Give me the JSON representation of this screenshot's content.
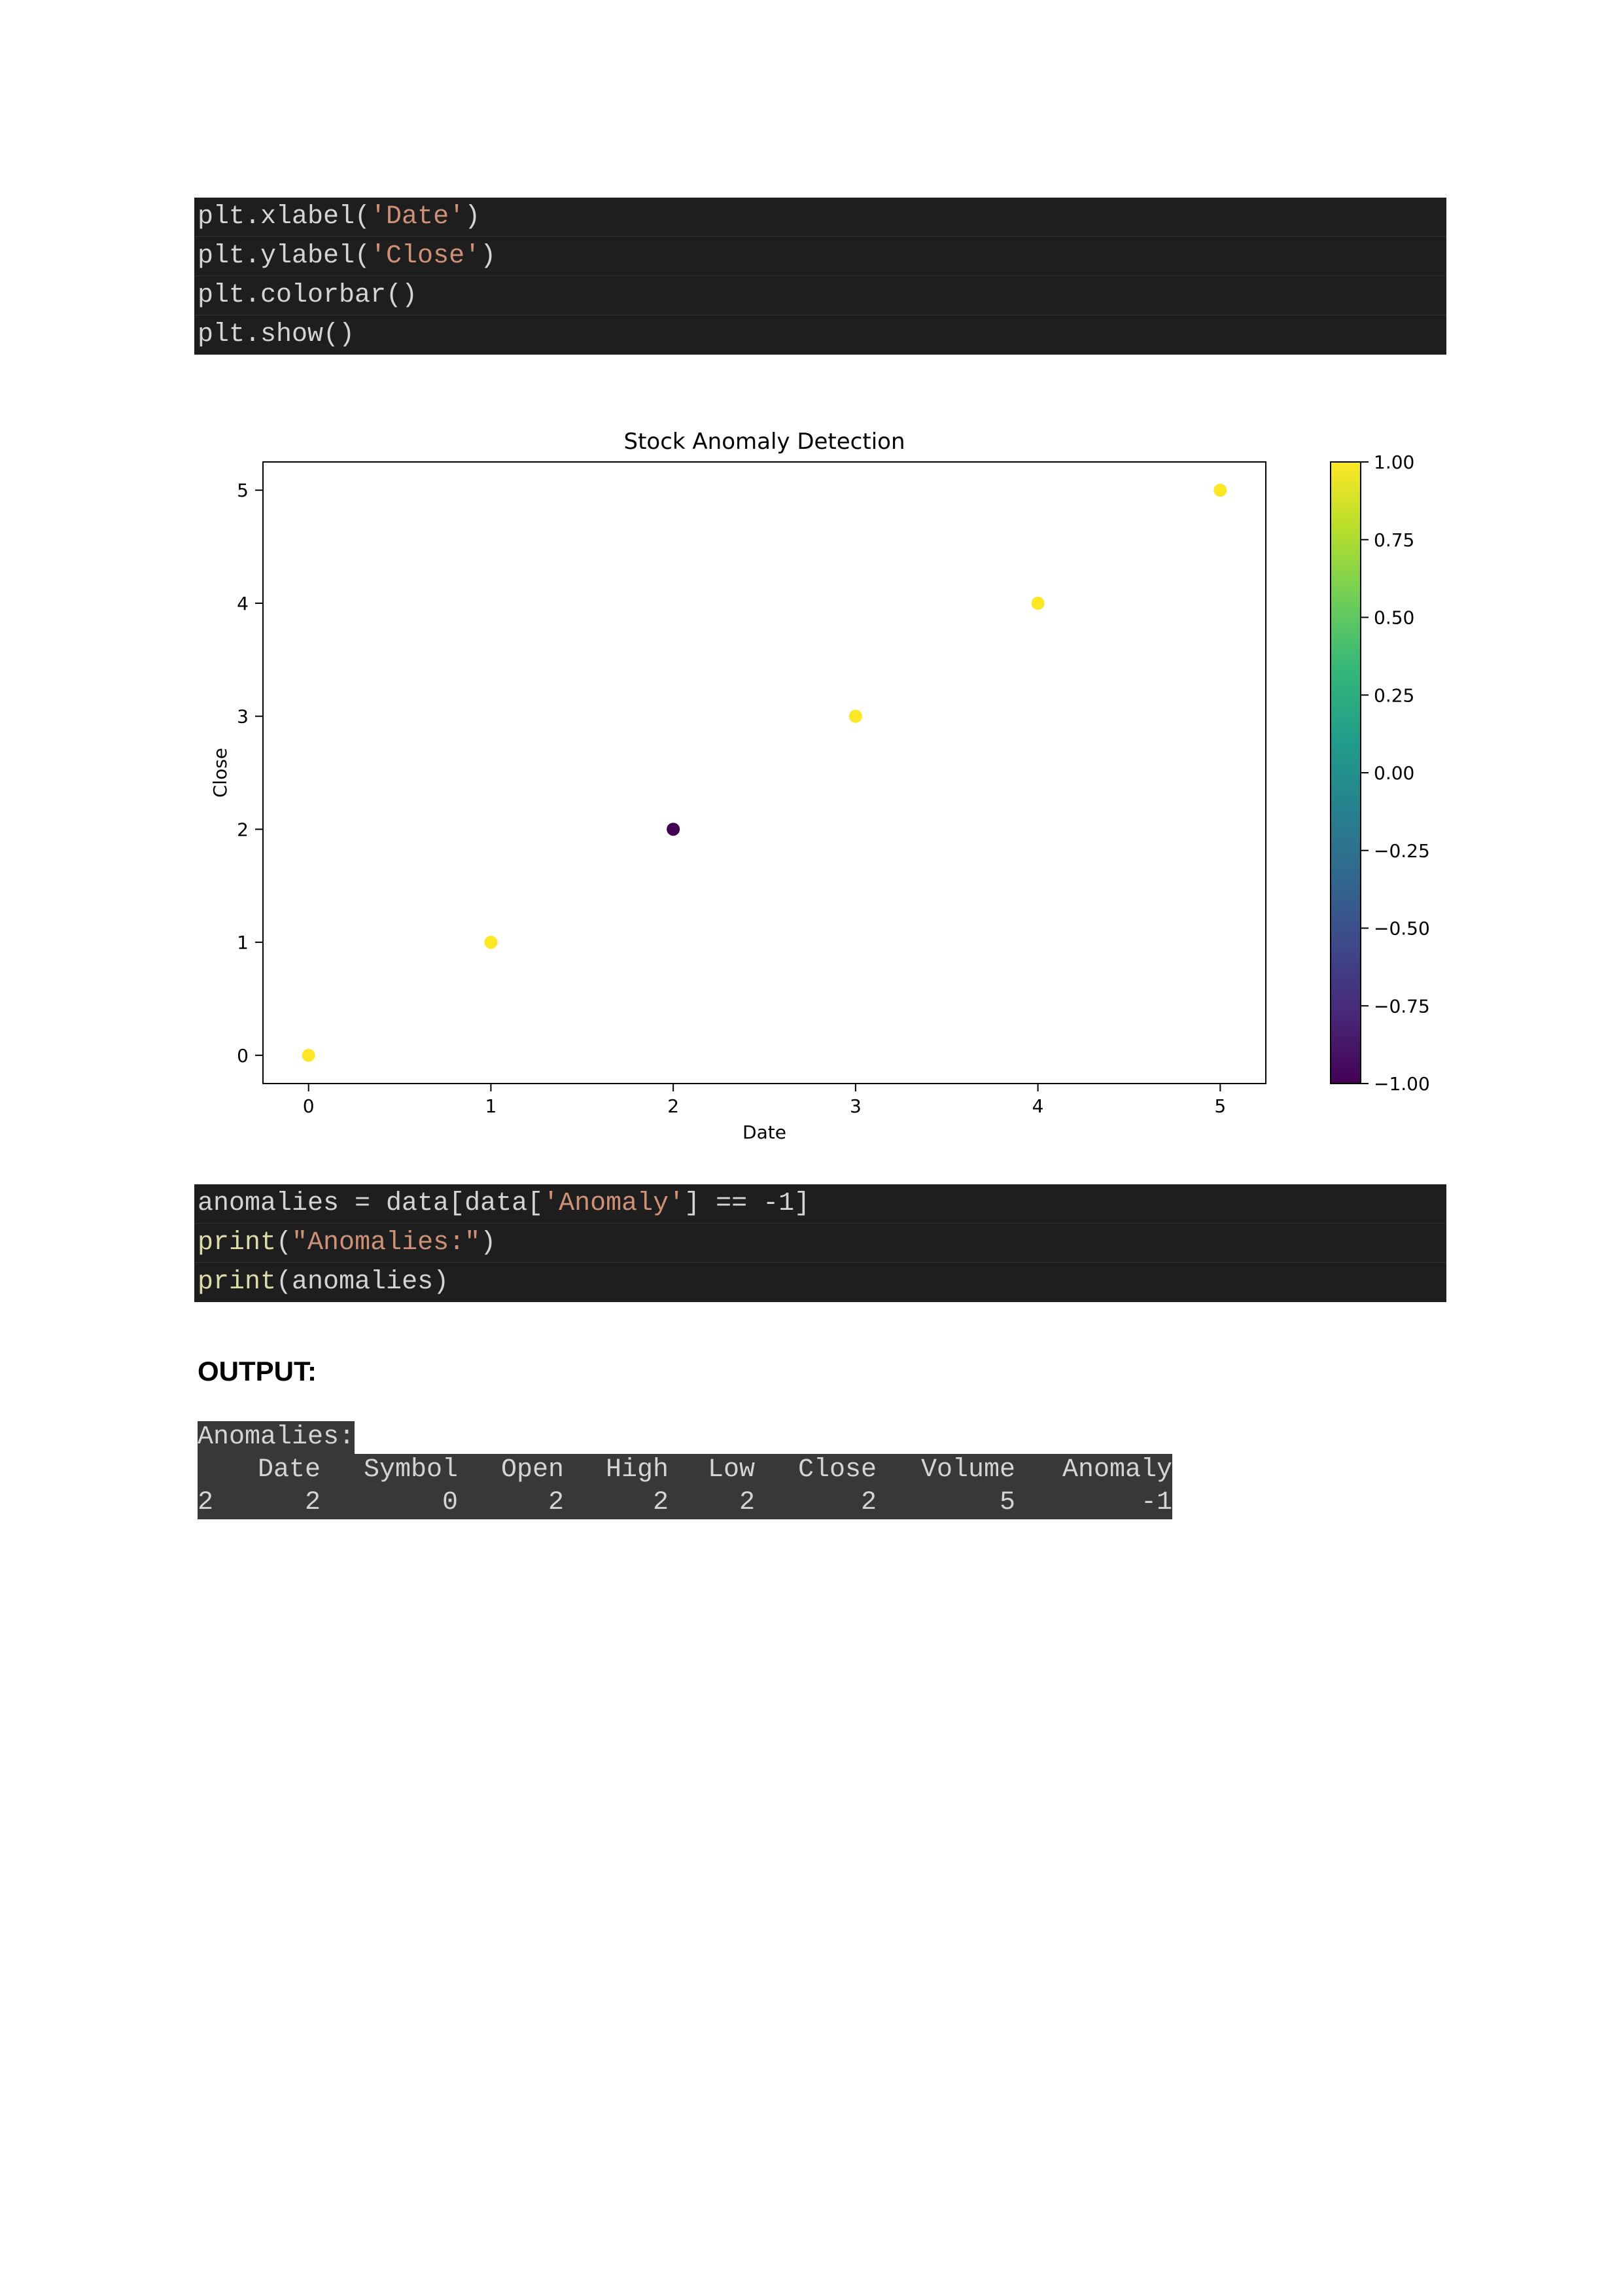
{
  "code_block_1": {
    "lines": [
      [
        {
          "t": "plt.xlabel(",
          "c": "plain"
        },
        {
          "t": "'Date'",
          "c": "str"
        },
        {
          "t": ")",
          "c": "plain"
        }
      ],
      [
        {
          "t": "plt.ylabel(",
          "c": "plain"
        },
        {
          "t": "'Close'",
          "c": "str"
        },
        {
          "t": ")",
          "c": "plain"
        }
      ],
      [
        {
          "t": "plt.colorbar()",
          "c": "plain"
        }
      ],
      [
        {
          "t": "plt.show()",
          "c": "plain"
        }
      ]
    ]
  },
  "chart_data": {
    "type": "scatter",
    "title": "Stock Anomaly Detection",
    "xlabel": "Date",
    "ylabel": "Close",
    "x": [
      0,
      1,
      2,
      3,
      4,
      5
    ],
    "y": [
      0,
      1,
      2,
      3,
      4,
      5
    ],
    "color_values": [
      1,
      1,
      -1,
      1,
      1,
      1
    ],
    "xlim": [
      -0.25,
      5.25
    ],
    "ylim": [
      -0.25,
      5.25
    ],
    "xticks": [
      "0",
      "1",
      "2",
      "3",
      "4",
      "5"
    ],
    "yticks": [
      "0",
      "1",
      "2",
      "3",
      "4",
      "5"
    ],
    "grid": false,
    "colormap": "viridis",
    "colorbar": {
      "range": [
        -1.0,
        1.0
      ],
      "ticks": [
        "1.00",
        "0.75",
        "0.50",
        "0.25",
        "0.00",
        "−0.25",
        "−0.50",
        "−0.75",
        "−1.00"
      ],
      "tick_values": [
        1.0,
        0.75,
        0.5,
        0.25,
        0.0,
        -0.25,
        -0.5,
        -0.75,
        -1.0
      ]
    },
    "colors": {
      "normal": "#fde725",
      "anomaly": "#440154"
    }
  },
  "code_block_2": {
    "lines": [
      [
        {
          "t": "anomalies = data[data[",
          "c": "plain"
        },
        {
          "t": "'Anomaly'",
          "c": "str"
        },
        {
          "t": "] == -1]",
          "c": "plain"
        }
      ],
      [
        {
          "t": "print",
          "c": "fn"
        },
        {
          "t": "(",
          "c": "plain"
        },
        {
          "t": "\"Anomalies:\"",
          "c": "str"
        },
        {
          "t": ")",
          "c": "plain"
        }
      ],
      [
        {
          "t": "print",
          "c": "fn"
        },
        {
          "t": "(anomalies)",
          "c": "plain"
        }
      ]
    ]
  },
  "output": {
    "label": "OUTPUT:",
    "printed_header": "Anomalies:",
    "table": {
      "columns": [
        "",
        "Date",
        "Symbol",
        "Open",
        "High",
        "Low",
        "Close",
        "Volume",
        "Anomaly"
      ],
      "rows": [
        [
          "2",
          "2",
          "0",
          "2",
          "2",
          "2",
          "2",
          "5",
          "-1"
        ]
      ]
    }
  }
}
